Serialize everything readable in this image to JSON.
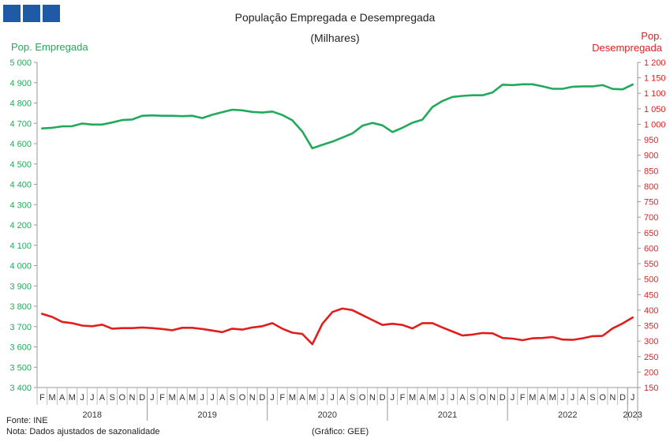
{
  "header": {
    "title": "População Empregada e Desempregada",
    "subtitle": "(Milhares)",
    "left_axis_label": "Pop. Empregada",
    "right_axis_label_line1": "Pop.",
    "right_axis_label_line2": "Desempregada"
  },
  "footer": {
    "source": "Fonte: INE",
    "note": "Nota: Dados ajustados de sazonalidade",
    "credit": "(Gráfico: GEE)"
  },
  "colors": {
    "employed": "#22a95b",
    "unemployed": "#e01e1e",
    "logo": "#1f5aa6"
  },
  "chart_data": {
    "type": "line",
    "months": [
      "F",
      "M",
      "A",
      "M",
      "J",
      "J",
      "A",
      "S",
      "O",
      "N",
      "D",
      "J",
      "F",
      "M",
      "A",
      "M",
      "J",
      "J",
      "A",
      "S",
      "O",
      "N",
      "D",
      "J",
      "F",
      "M",
      "A",
      "M",
      "J",
      "J",
      "A",
      "S",
      "O",
      "N",
      "D",
      "J",
      "F",
      "M",
      "A",
      "M",
      "J",
      "J",
      "A",
      "S",
      "O",
      "N",
      "D",
      "J",
      "F",
      "M",
      "A",
      "M",
      "J",
      "J",
      "A",
      "S",
      "O",
      "N",
      "D",
      "J"
    ],
    "years": [
      {
        "label": "2018",
        "start": 0,
        "end": 11
      },
      {
        "label": "2019",
        "start": 11,
        "end": 23
      },
      {
        "label": "2020",
        "start": 23,
        "end": 35
      },
      {
        "label": "2021",
        "start": 35,
        "end": 47
      },
      {
        "label": "2022",
        "start": 47,
        "end": 59
      },
      {
        "label": "2023",
        "start": 59,
        "end": 60
      }
    ],
    "y_left": {
      "min": 3400,
      "max": 5000,
      "step": 100
    },
    "y_right": {
      "min": 150,
      "max": 1200,
      "step": 50
    },
    "series": [
      {
        "name": "Pop. Empregada",
        "axis": "left",
        "values": [
          4675,
          4678,
          4685,
          4686,
          4699,
          4694,
          4694,
          4704,
          4716,
          4719,
          4737,
          4739,
          4737,
          4737,
          4735,
          4737,
          4726,
          4742,
          4755,
          4767,
          4764,
          4756,
          4753,
          4758,
          4741,
          4715,
          4660,
          4577,
          4594,
          4610,
          4630,
          4650,
          4688,
          4702,
          4690,
          4657,
          4678,
          4703,
          4718,
          4780,
          4810,
          4830,
          4835,
          4838,
          4838,
          4852,
          4890,
          4888,
          4892,
          4892,
          4882,
          4870,
          4870,
          4880,
          4882,
          4882,
          4888,
          4869,
          4867,
          4891
        ]
      },
      {
        "name": "Pop. Desempregada",
        "axis": "right",
        "values": [
          388,
          378,
          362,
          358,
          350,
          348,
          353,
          340,
          342,
          342,
          344,
          342,
          339,
          335,
          343,
          343,
          339,
          334,
          329,
          340,
          337,
          344,
          348,
          358,
          340,
          327,
          323,
          290,
          356,
          394,
          405,
          400,
          384,
          368,
          352,
          356,
          352,
          341,
          358,
          358,
          344,
          331,
          318,
          321,
          326,
          325,
          310,
          308,
          303,
          309,
          310,
          313,
          305,
          304,
          309,
          316,
          317,
          341,
          357,
          376
        ]
      }
    ]
  }
}
